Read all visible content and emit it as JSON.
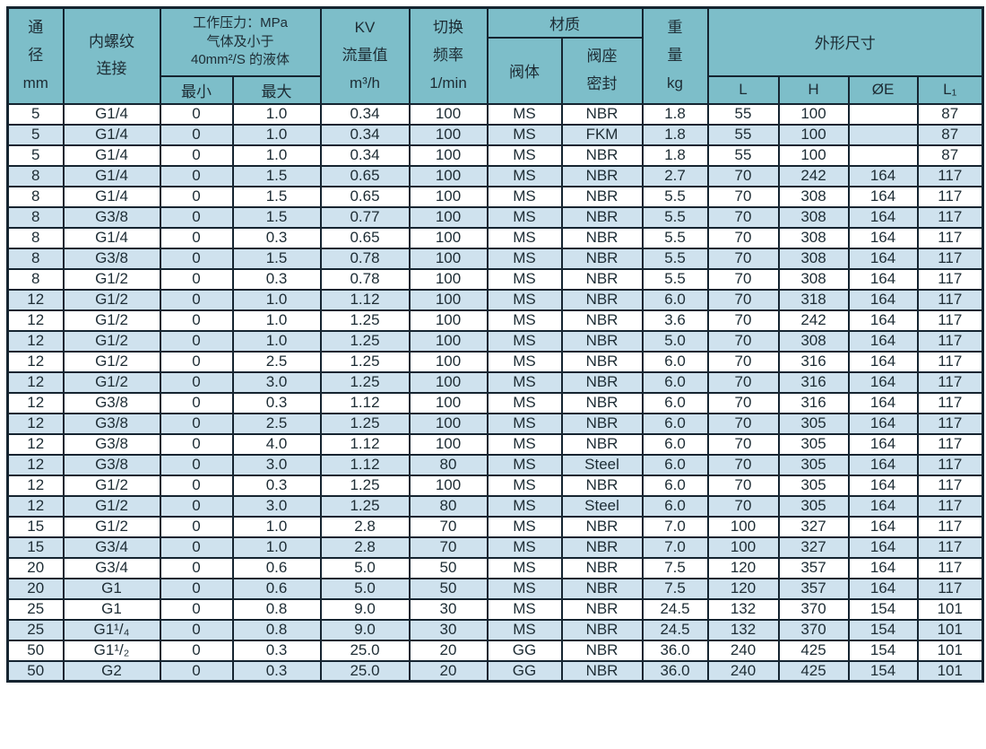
{
  "table": {
    "header": {
      "diameter": "通\n径\nmm",
      "thread": "内螺纹\n连接",
      "pressure": "工作压力：MPa\n气体及小于\n40mm²/S 的液体",
      "min": "最小",
      "max": "最大",
      "kv": "KV\n流量值\nm³/h",
      "frequency": "切换\n频率\n1/min",
      "material": "材质",
      "valve_body": "阀体",
      "seat_seal": "阀座\n密封",
      "weight": "重\n量\nkg",
      "dimensions": "外形尺寸",
      "dim_l": "L",
      "dim_h": "H",
      "dim_e": "ØE",
      "dim_l1": "L₁"
    },
    "column_keys": [
      "dn",
      "thread",
      "pressure-min",
      "pressure-max",
      "kv",
      "frequency",
      "valve-body",
      "seat-seal",
      "weight",
      "dim-l",
      "dim-h",
      "dim-e",
      "dim-l1"
    ],
    "rows": [
      [
        "5",
        "G1/4",
        "0",
        "1.0",
        "0.34",
        "100",
        "MS",
        "NBR",
        "1.8",
        "55",
        "100",
        "",
        "87"
      ],
      [
        "5",
        "G1/4",
        "0",
        "1.0",
        "0.34",
        "100",
        "MS",
        "FKM",
        "1.8",
        "55",
        "100",
        "",
        "87"
      ],
      [
        "5",
        "G1/4",
        "0",
        "1.0",
        "0.34",
        "100",
        "MS",
        "NBR",
        "1.8",
        "55",
        "100",
        "",
        "87"
      ],
      [
        "8",
        "G1/4",
        "0",
        "1.5",
        "0.65",
        "100",
        "MS",
        "NBR",
        "2.7",
        "70",
        "242",
        "164",
        "117"
      ],
      [
        "8",
        "G1/4",
        "0",
        "1.5",
        "0.65",
        "100",
        "MS",
        "NBR",
        "5.5",
        "70",
        "308",
        "164",
        "117"
      ],
      [
        "8",
        "G3/8",
        "0",
        "1.5",
        "0.77",
        "100",
        "MS",
        "NBR",
        "5.5",
        "70",
        "308",
        "164",
        "117"
      ],
      [
        "8",
        "G1/4",
        "0",
        "0.3",
        "0.65",
        "100",
        "MS",
        "NBR",
        "5.5",
        "70",
        "308",
        "164",
        "117"
      ],
      [
        "8",
        "G3/8",
        "0",
        "1.5",
        "0.78",
        "100",
        "MS",
        "NBR",
        "5.5",
        "70",
        "308",
        "164",
        "117"
      ],
      [
        "8",
        "G1/2",
        "0",
        "0.3",
        "0.78",
        "100",
        "MS",
        "NBR",
        "5.5",
        "70",
        "308",
        "164",
        "117"
      ],
      [
        "12",
        "G1/2",
        "0",
        "1.0",
        "1.12",
        "100",
        "MS",
        "NBR",
        "6.0",
        "70",
        "318",
        "164",
        "117"
      ],
      [
        "12",
        "G1/2",
        "0",
        "1.0",
        "1.25",
        "100",
        "MS",
        "NBR",
        "3.6",
        "70",
        "242",
        "164",
        "117"
      ],
      [
        "12",
        "G1/2",
        "0",
        "1.0",
        "1.25",
        "100",
        "MS",
        "NBR",
        "5.0",
        "70",
        "308",
        "164",
        "117"
      ],
      [
        "12",
        "G1/2",
        "0",
        "2.5",
        "1.25",
        "100",
        "MS",
        "NBR",
        "6.0",
        "70",
        "316",
        "164",
        "117"
      ],
      [
        "12",
        "G1/2",
        "0",
        "3.0",
        "1.25",
        "100",
        "MS",
        "NBR",
        "6.0",
        "70",
        "316",
        "164",
        "117"
      ],
      [
        "12",
        "G3/8",
        "0",
        "0.3",
        "1.12",
        "100",
        "MS",
        "NBR",
        "6.0",
        "70",
        "316",
        "164",
        "117"
      ],
      [
        "12",
        "G3/8",
        "0",
        "2.5",
        "1.25",
        "100",
        "MS",
        "NBR",
        "6.0",
        "70",
        "305",
        "164",
        "117"
      ],
      [
        "12",
        "G3/8",
        "0",
        "4.0",
        "1.12",
        "100",
        "MS",
        "NBR",
        "6.0",
        "70",
        "305",
        "164",
        "117"
      ],
      [
        "12",
        "G3/8",
        "0",
        "3.0",
        "1.12",
        "80",
        "MS",
        "Steel",
        "6.0",
        "70",
        "305",
        "164",
        "117"
      ],
      [
        "12",
        "G1/2",
        "0",
        "0.3",
        "1.25",
        "100",
        "MS",
        "NBR",
        "6.0",
        "70",
        "305",
        "164",
        "117"
      ],
      [
        "12",
        "G1/2",
        "0",
        "3.0",
        "1.25",
        "80",
        "MS",
        "Steel",
        "6.0",
        "70",
        "305",
        "164",
        "117"
      ],
      [
        "15",
        "G1/2",
        "0",
        "1.0",
        "2.8",
        "70",
        "MS",
        "NBR",
        "7.0",
        "100",
        "327",
        "164",
        "117"
      ],
      [
        "15",
        "G3/4",
        "0",
        "1.0",
        "2.8",
        "70",
        "MS",
        "NBR",
        "7.0",
        "100",
        "327",
        "164",
        "117"
      ],
      [
        "20",
        "G3/4",
        "0",
        "0.6",
        "5.0",
        "50",
        "MS",
        "NBR",
        "7.5",
        "120",
        "357",
        "164",
        "117"
      ],
      [
        "20",
        "G1",
        "0",
        "0.6",
        "5.0",
        "50",
        "MS",
        "NBR",
        "7.5",
        "120",
        "357",
        "164",
        "117"
      ],
      [
        "25",
        "G1",
        "0",
        "0.8",
        "9.0",
        "30",
        "MS",
        "NBR",
        "24.5",
        "132",
        "370",
        "154",
        "101"
      ],
      [
        "25",
        "G1¹/₄",
        "0",
        "0.8",
        "9.0",
        "30",
        "MS",
        "NBR",
        "24.5",
        "132",
        "370",
        "154",
        "101"
      ],
      [
        "50",
        "G1¹/₂",
        "0",
        "0.3",
        "25.0",
        "20",
        "GG",
        "NBR",
        "36.0",
        "240",
        "425",
        "154",
        "101"
      ],
      [
        "50",
        "G2",
        "0",
        "0.3",
        "25.0",
        "20",
        "GG",
        "NBR",
        "36.0",
        "240",
        "425",
        "154",
        "101"
      ]
    ]
  },
  "colors": {
    "header_bg": "#7dbec9",
    "row_bg": "#ffffff",
    "row_alt_bg": "#cfe2ee",
    "border": "#152430",
    "text": "#1d2c34"
  }
}
